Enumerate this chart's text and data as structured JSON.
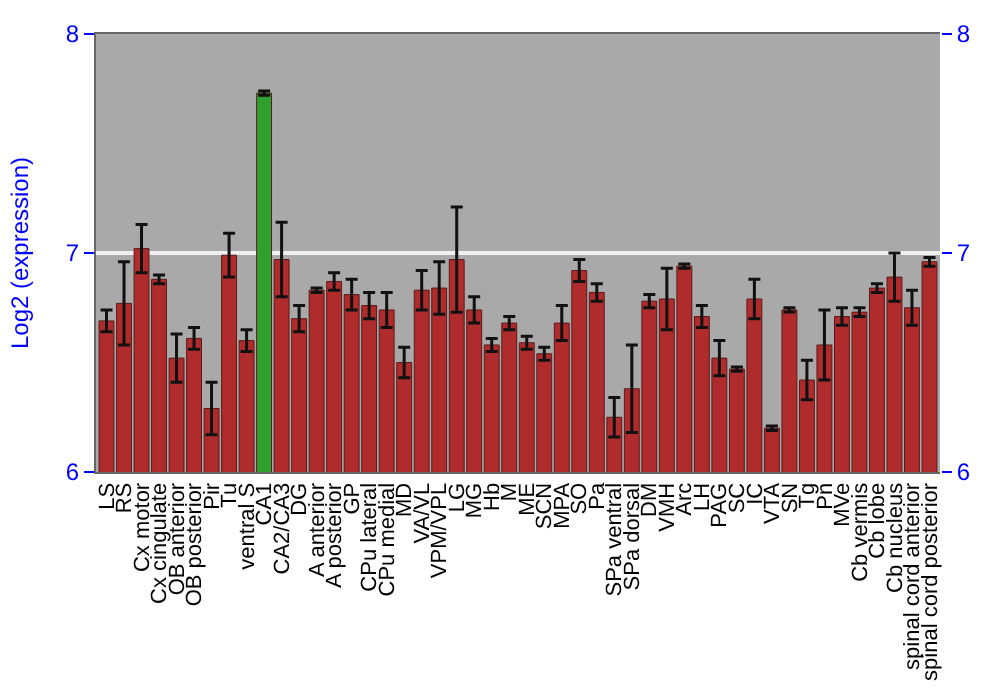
{
  "chart_data": {
    "type": "bar",
    "ylabel": "Log2 (expression)",
    "categories": [
      "LS",
      "RS",
      "Cx motor",
      "Cx cingulate",
      "OB anterior",
      "OB posterior",
      "Pir",
      "Tu",
      "ventral S",
      "CA1",
      "CA2/CA3",
      "DG",
      "A anterior",
      "A posterior",
      "GP",
      "CPu lateral",
      "CPu medial",
      "MD",
      "VA/VL",
      "VPM/VPL",
      "LG",
      "MG",
      "Hb",
      "M",
      "ME",
      "SCN",
      "MPA",
      "SO",
      "Pa",
      "SPa ventral",
      "SPa dorsal",
      "DM",
      "VMH",
      "Arc",
      "LH",
      "PAG",
      "SC",
      "IC",
      "VTA",
      "SN",
      "Tg",
      "Pn",
      "MVe",
      "Cb vermis",
      "Cb lobe",
      "Cb nucleus",
      "spinal cord anterior",
      "spinal cord posterior"
    ],
    "values": [
      6.69,
      6.77,
      7.02,
      6.88,
      6.52,
      6.61,
      6.29,
      6.99,
      6.6,
      7.73,
      6.97,
      6.7,
      6.83,
      6.87,
      6.81,
      6.76,
      6.74,
      6.5,
      6.83,
      6.84,
      6.97,
      6.74,
      6.58,
      6.68,
      6.59,
      6.54,
      6.68,
      6.92,
      6.82,
      6.25,
      6.38,
      6.78,
      6.79,
      6.94,
      6.71,
      6.52,
      6.47,
      6.79,
      6.2,
      6.74,
      6.42,
      6.58,
      6.71,
      6.73,
      6.84,
      6.89,
      6.75,
      6.96
    ],
    "errors": [
      0.05,
      0.19,
      0.11,
      0.02,
      0.11,
      0.05,
      0.12,
      0.1,
      0.05,
      0.01,
      0.17,
      0.06,
      0.01,
      0.04,
      0.07,
      0.06,
      0.08,
      0.07,
      0.09,
      0.12,
      0.24,
      0.06,
      0.03,
      0.03,
      0.03,
      0.03,
      0.08,
      0.05,
      0.04,
      0.09,
      0.2,
      0.03,
      0.14,
      0.01,
      0.05,
      0.08,
      0.01,
      0.09,
      0.01,
      0.01,
      0.09,
      0.16,
      0.04,
      0.02,
      0.02,
      0.11,
      0.08,
      0.02
    ],
    "colors": [
      "#b02c2c",
      "#b02c2c",
      "#b02c2c",
      "#b02c2c",
      "#b02c2c",
      "#b02c2c",
      "#b02c2c",
      "#b02c2c",
      "#b02c2c",
      "#2ea02e",
      "#b02c2c",
      "#b02c2c",
      "#b02c2c",
      "#b02c2c",
      "#b02c2c",
      "#b02c2c",
      "#b02c2c",
      "#b02c2c",
      "#b02c2c",
      "#b02c2c",
      "#b02c2c",
      "#b02c2c",
      "#b02c2c",
      "#b02c2c",
      "#b02c2c",
      "#b02c2c",
      "#b02c2c",
      "#b02c2c",
      "#b02c2c",
      "#b02c2c",
      "#b02c2c",
      "#b02c2c",
      "#b02c2c",
      "#b02c2c",
      "#b02c2c",
      "#b02c2c",
      "#b02c2c",
      "#b02c2c",
      "#b02c2c",
      "#b02c2c",
      "#b02c2c",
      "#b02c2c",
      "#b02c2c",
      "#b02c2c",
      "#b02c2c",
      "#b02c2c",
      "#b02c2c",
      "#b02c2c"
    ],
    "ylim": [
      6,
      8
    ],
    "yticks": [
      6,
      7,
      8
    ],
    "y2lim": [
      6,
      8
    ],
    "y2ticks": [
      6,
      7,
      8
    ],
    "grid": "y",
    "legend": false
  }
}
